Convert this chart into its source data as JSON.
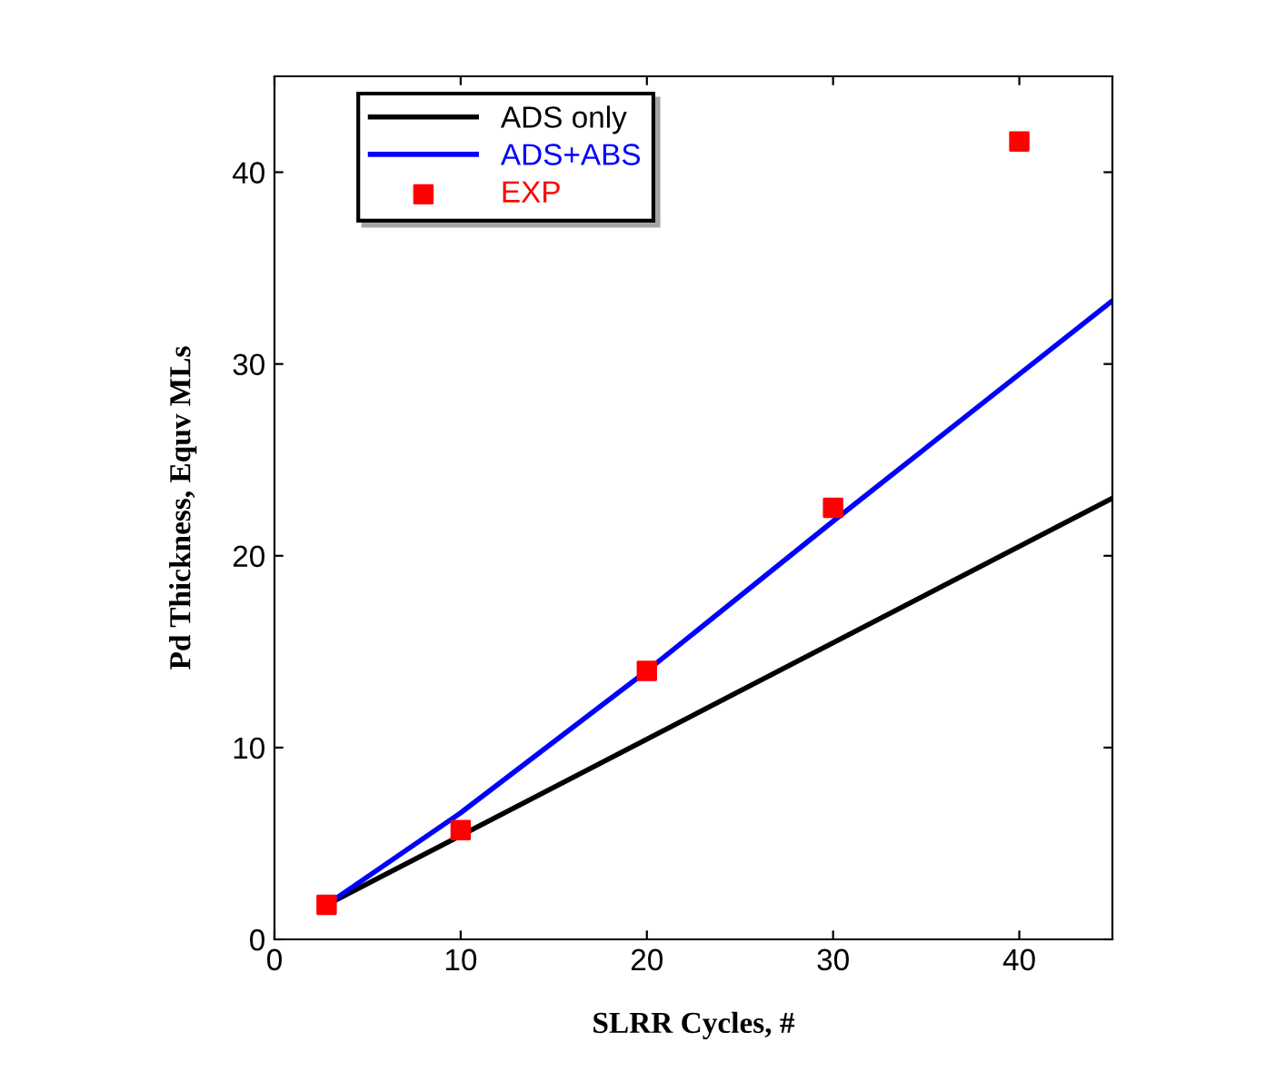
{
  "chart_data": {
    "type": "line",
    "xlabel": "SLRR Cycles, #",
    "ylabel": "Pd Thickness, Equv MLs",
    "xlim": [
      0,
      45
    ],
    "xticks": [
      0,
      10,
      20,
      30,
      40
    ],
    "ylim": [
      0,
      45
    ],
    "yticks": [
      0,
      10,
      20,
      30,
      40
    ],
    "grid": false,
    "legend": "top left",
    "series": [
      {
        "name": "ADS only",
        "color": "#000000",
        "x": [
          2.8,
          45
        ],
        "values": [
          1.8,
          23.0
        ],
        "marker": "none",
        "line_style": "solid"
      },
      {
        "name": "ADS+ABS",
        "color": "#0000ff",
        "x": [
          2.8,
          10,
          20,
          30,
          45
        ],
        "values": [
          1.8,
          6.6,
          14.0,
          21.8,
          33.3
        ],
        "marker": "none",
        "line_style": "solid"
      },
      {
        "name": "EXP",
        "type": "scatter",
        "color": "#ff0000",
        "x": [
          2.8,
          10,
          20,
          30,
          40
        ],
        "values": [
          1.8,
          5.7,
          14.0,
          22.5,
          41.6
        ],
        "marker": "square"
      }
    ]
  }
}
